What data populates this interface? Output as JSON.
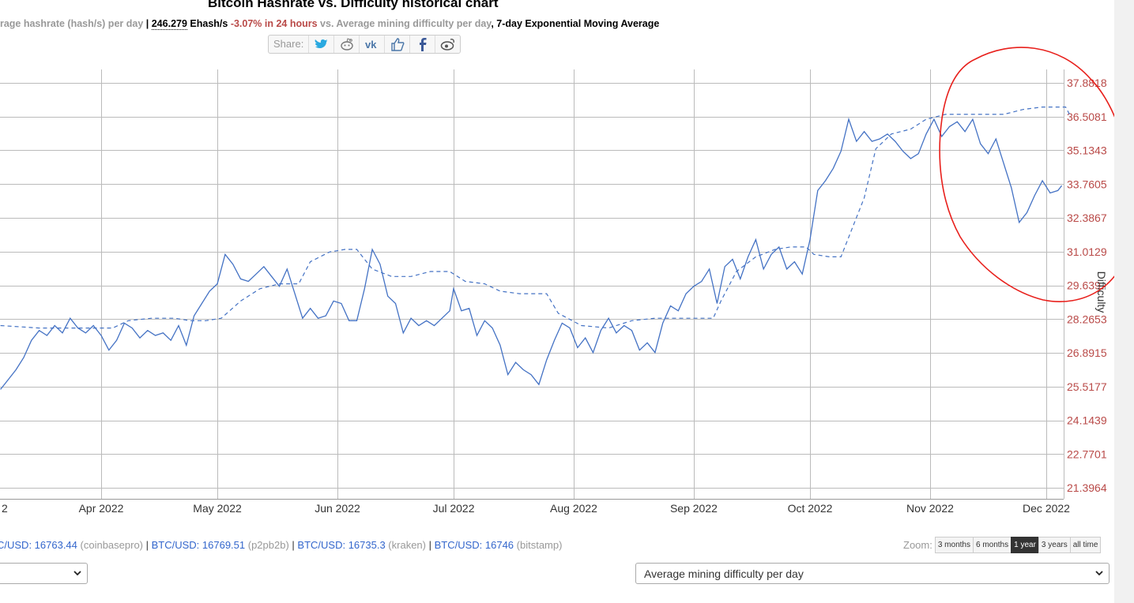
{
  "page": {
    "title": "Bitcoin Hashrate vs. Difficulty historical chart",
    "subtitle": {
      "part1": "erage hashrate (hash/s) per day",
      "sep": " | ",
      "hashrate": "246.279",
      "unit": " Ehash/s ",
      "change": "-3.07% in 24 hours",
      "part2": " vs. Average mining difficulty per day",
      "part3": ", 7-day Exponential Moving Average"
    },
    "share_label": "Share:",
    "share_icons": [
      "twitter-icon",
      "reddit-icon",
      "vk-icon",
      "like-icon",
      "facebook-icon",
      "weibo-icon"
    ]
  },
  "prices": [
    {
      "pair": "C/USD: ",
      "value": "16763.44",
      "exchange": " (coinbasepro)"
    },
    {
      "pair": "BTC/USD: ",
      "value": "16769.51",
      "exchange": " (p2pb2b)"
    },
    {
      "pair": "BTC/USD: ",
      "value": "16735.3",
      "exchange": " (kraken)"
    },
    {
      "pair": "BTC/USD: ",
      "value": "16746",
      "exchange": " (bitstamp)"
    }
  ],
  "price_separator": " | ",
  "zoom": {
    "label": "Zoom:",
    "options": [
      "3 months",
      "6 months",
      "1 year",
      "3 years",
      "all time"
    ],
    "active": "1 year"
  },
  "selects": {
    "left_value": "",
    "right_value": "Average mining difficulty per day"
  },
  "colors": {
    "line": "#4472c4",
    "axis_text": "#b94a48",
    "grid": "#bbbbbb",
    "annotation": "#e8201c"
  },
  "chart_data": {
    "type": "line",
    "title": "Bitcoin Hashrate vs. Difficulty historical chart",
    "x_ticks": [
      "2",
      "Apr 2022",
      "May 2022",
      "Jun 2022",
      "Jul 2022",
      "Aug 2022",
      "Sep 2022",
      "Oct 2022",
      "Nov 2022",
      "Dec 2022"
    ],
    "x_range": [
      "2022-03-06",
      "2022-12-07"
    ],
    "y_right_label": "Difficulty",
    "y_right_ticks": [
      "37.8818",
      "36.5081",
      "35.1343",
      "33.7605",
      "32.3867",
      "31.0129",
      "29.639",
      "28.2653",
      "26.8915",
      "25.5177",
      "24.1439",
      "22.7701",
      "21.3964"
    ],
    "y_range": [
      21.3964,
      37.8818
    ],
    "grid": true,
    "series": [
      {
        "style": "solid",
        "points": [
          [
            "2022-03-06",
            25.4
          ],
          [
            "2022-03-08",
            25.8
          ],
          [
            "2022-03-10",
            26.2
          ],
          [
            "2022-03-12",
            26.7
          ],
          [
            "2022-03-14",
            27.4
          ],
          [
            "2022-03-16",
            27.8
          ],
          [
            "2022-03-18",
            27.6
          ],
          [
            "2022-03-20",
            28.0
          ],
          [
            "2022-03-22",
            27.7
          ],
          [
            "2022-03-24",
            28.3
          ],
          [
            "2022-03-26",
            27.9
          ],
          [
            "2022-03-28",
            27.7
          ],
          [
            "2022-03-30",
            28.0
          ],
          [
            "2022-04-01",
            27.6
          ],
          [
            "2022-04-03",
            27.0
          ],
          [
            "2022-04-05",
            27.4
          ],
          [
            "2022-04-07",
            28.1
          ],
          [
            "2022-04-09",
            27.9
          ],
          [
            "2022-04-11",
            27.5
          ],
          [
            "2022-04-13",
            27.8
          ],
          [
            "2022-04-15",
            27.6
          ],
          [
            "2022-04-17",
            27.7
          ],
          [
            "2022-04-19",
            27.4
          ],
          [
            "2022-04-21",
            28.0
          ],
          [
            "2022-04-23",
            27.2
          ],
          [
            "2022-04-25",
            28.4
          ],
          [
            "2022-04-27",
            28.9
          ],
          [
            "2022-04-29",
            29.4
          ],
          [
            "2022-05-01",
            29.7
          ],
          [
            "2022-05-03",
            30.9
          ],
          [
            "2022-05-05",
            30.5
          ],
          [
            "2022-05-07",
            29.9
          ],
          [
            "2022-05-09",
            29.8
          ],
          [
            "2022-05-11",
            30.1
          ],
          [
            "2022-05-13",
            30.4
          ],
          [
            "2022-05-15",
            30.0
          ],
          [
            "2022-05-17",
            29.6
          ],
          [
            "2022-05-19",
            30.3
          ],
          [
            "2022-05-21",
            29.3
          ],
          [
            "2022-05-23",
            28.3
          ],
          [
            "2022-05-25",
            28.7
          ],
          [
            "2022-05-27",
            28.3
          ],
          [
            "2022-05-29",
            28.4
          ],
          [
            "2022-05-31",
            29.0
          ],
          [
            "2022-06-02",
            28.9
          ],
          [
            "2022-06-04",
            28.2
          ],
          [
            "2022-06-06",
            28.2
          ],
          [
            "2022-06-08",
            29.5
          ],
          [
            "2022-06-10",
            31.1
          ],
          [
            "2022-06-12",
            30.5
          ],
          [
            "2022-06-14",
            29.2
          ],
          [
            "2022-06-16",
            28.9
          ],
          [
            "2022-06-18",
            27.7
          ],
          [
            "2022-06-20",
            28.3
          ],
          [
            "2022-06-22",
            28.0
          ],
          [
            "2022-06-24",
            28.2
          ],
          [
            "2022-06-26",
            28.0
          ],
          [
            "2022-06-28",
            28.3
          ],
          [
            "2022-06-30",
            28.6
          ],
          [
            "2022-07-01",
            29.5
          ],
          [
            "2022-07-03",
            28.6
          ],
          [
            "2022-07-05",
            28.7
          ],
          [
            "2022-07-07",
            27.6
          ],
          [
            "2022-07-09",
            28.2
          ],
          [
            "2022-07-11",
            27.9
          ],
          [
            "2022-07-13",
            27.2
          ],
          [
            "2022-07-15",
            26.0
          ],
          [
            "2022-07-17",
            26.5
          ],
          [
            "2022-07-19",
            26.2
          ],
          [
            "2022-07-21",
            26.0
          ],
          [
            "2022-07-23",
            25.6
          ],
          [
            "2022-07-25",
            26.6
          ],
          [
            "2022-07-27",
            27.4
          ],
          [
            "2022-07-29",
            28.1
          ],
          [
            "2022-07-31",
            27.9
          ],
          [
            "2022-08-02",
            27.1
          ],
          [
            "2022-08-04",
            27.5
          ],
          [
            "2022-08-06",
            26.9
          ],
          [
            "2022-08-08",
            27.8
          ],
          [
            "2022-08-10",
            28.3
          ],
          [
            "2022-08-12",
            27.7
          ],
          [
            "2022-08-14",
            28.0
          ],
          [
            "2022-08-16",
            27.8
          ],
          [
            "2022-08-18",
            27.0
          ],
          [
            "2022-08-20",
            27.3
          ],
          [
            "2022-08-22",
            26.9
          ],
          [
            "2022-08-24",
            28.1
          ],
          [
            "2022-08-26",
            28.8
          ],
          [
            "2022-08-28",
            28.6
          ],
          [
            "2022-08-30",
            29.3
          ],
          [
            "2022-09-01",
            29.6
          ],
          [
            "2022-09-03",
            29.8
          ],
          [
            "2022-09-05",
            30.3
          ],
          [
            "2022-09-07",
            28.9
          ],
          [
            "2022-09-09",
            30.4
          ],
          [
            "2022-09-11",
            30.7
          ],
          [
            "2022-09-13",
            29.9
          ],
          [
            "2022-09-15",
            30.8
          ],
          [
            "2022-09-17",
            31.5
          ],
          [
            "2022-09-19",
            30.3
          ],
          [
            "2022-09-21",
            30.9
          ],
          [
            "2022-09-23",
            31.2
          ],
          [
            "2022-09-25",
            30.3
          ],
          [
            "2022-09-27",
            30.6
          ],
          [
            "2022-09-29",
            30.1
          ],
          [
            "2022-10-01",
            31.5
          ],
          [
            "2022-10-03",
            33.5
          ],
          [
            "2022-10-05",
            33.9
          ],
          [
            "2022-10-07",
            34.4
          ],
          [
            "2022-10-09",
            35.1
          ],
          [
            "2022-10-11",
            36.4
          ],
          [
            "2022-10-13",
            35.5
          ],
          [
            "2022-10-15",
            35.9
          ],
          [
            "2022-10-17",
            35.5
          ],
          [
            "2022-10-19",
            35.6
          ],
          [
            "2022-10-21",
            35.8
          ],
          [
            "2022-10-23",
            35.5
          ],
          [
            "2022-10-25",
            35.1
          ],
          [
            "2022-10-27",
            34.8
          ],
          [
            "2022-10-29",
            35.0
          ],
          [
            "2022-10-31",
            35.8
          ],
          [
            "2022-11-02",
            36.4
          ],
          [
            "2022-11-04",
            35.7
          ],
          [
            "2022-11-06",
            36.1
          ],
          [
            "2022-11-08",
            36.3
          ],
          [
            "2022-11-10",
            35.9
          ],
          [
            "2022-11-12",
            36.4
          ],
          [
            "2022-11-14",
            35.4
          ],
          [
            "2022-11-16",
            35.0
          ],
          [
            "2022-11-18",
            35.6
          ],
          [
            "2022-11-20",
            34.6
          ],
          [
            "2022-11-22",
            33.6
          ],
          [
            "2022-11-24",
            32.2
          ],
          [
            "2022-11-26",
            32.6
          ],
          [
            "2022-11-28",
            33.3
          ],
          [
            "2022-11-30",
            33.9
          ],
          [
            "2022-12-02",
            33.4
          ],
          [
            "2022-12-04",
            33.5
          ],
          [
            "2022-12-05",
            33.7
          ]
        ]
      },
      {
        "style": "dashed",
        "points": [
          [
            "2022-03-06",
            28.0
          ],
          [
            "2022-03-16",
            27.9
          ],
          [
            "2022-03-26",
            27.9
          ],
          [
            "2022-04-04",
            27.9
          ],
          [
            "2022-04-08",
            28.2
          ],
          [
            "2022-04-14",
            28.3
          ],
          [
            "2022-04-20",
            28.3
          ],
          [
            "2022-04-24",
            28.2
          ],
          [
            "2022-04-28",
            28.2
          ],
          [
            "2022-05-02",
            28.3
          ],
          [
            "2022-05-07",
            29.0
          ],
          [
            "2022-05-12",
            29.5
          ],
          [
            "2022-05-17",
            29.7
          ],
          [
            "2022-05-22",
            29.7
          ],
          [
            "2022-05-25",
            30.6
          ],
          [
            "2022-05-30",
            31.0
          ],
          [
            "2022-06-03",
            31.1
          ],
          [
            "2022-06-06",
            31.1
          ],
          [
            "2022-06-10",
            30.3
          ],
          [
            "2022-06-15",
            30.0
          ],
          [
            "2022-06-20",
            30.0
          ],
          [
            "2022-06-25",
            30.2
          ],
          [
            "2022-06-30",
            30.2
          ],
          [
            "2022-07-04",
            29.8
          ],
          [
            "2022-07-09",
            29.7
          ],
          [
            "2022-07-13",
            29.4
          ],
          [
            "2022-07-18",
            29.3
          ],
          [
            "2022-07-25",
            29.3
          ],
          [
            "2022-07-28",
            28.5
          ],
          [
            "2022-08-03",
            28.0
          ],
          [
            "2022-08-10",
            27.9
          ],
          [
            "2022-08-16",
            28.2
          ],
          [
            "2022-08-22",
            28.3
          ],
          [
            "2022-08-28",
            28.3
          ],
          [
            "2022-09-02",
            28.3
          ],
          [
            "2022-09-06",
            28.3
          ],
          [
            "2022-09-08",
            29.0
          ],
          [
            "2022-09-12",
            30.2
          ],
          [
            "2022-09-17",
            30.8
          ],
          [
            "2022-09-22",
            31.1
          ],
          [
            "2022-09-26",
            31.2
          ],
          [
            "2022-09-30",
            31.2
          ],
          [
            "2022-10-02",
            30.9
          ],
          [
            "2022-10-06",
            30.8
          ],
          [
            "2022-10-09",
            30.8
          ],
          [
            "2022-10-12",
            32.0
          ],
          [
            "2022-10-15",
            33.2
          ],
          [
            "2022-10-18",
            35.2
          ],
          [
            "2022-10-22",
            35.8
          ],
          [
            "2022-10-27",
            36.0
          ],
          [
            "2022-10-31",
            36.4
          ],
          [
            "2022-11-05",
            36.6
          ],
          [
            "2022-11-10",
            36.6
          ],
          [
            "2022-11-15",
            36.6
          ],
          [
            "2022-11-20",
            36.6
          ],
          [
            "2022-11-25",
            36.8
          ],
          [
            "2022-11-30",
            36.9
          ],
          [
            "2022-12-06",
            36.9
          ],
          [
            "2022-12-07",
            36.6
          ]
        ]
      }
    ]
  }
}
